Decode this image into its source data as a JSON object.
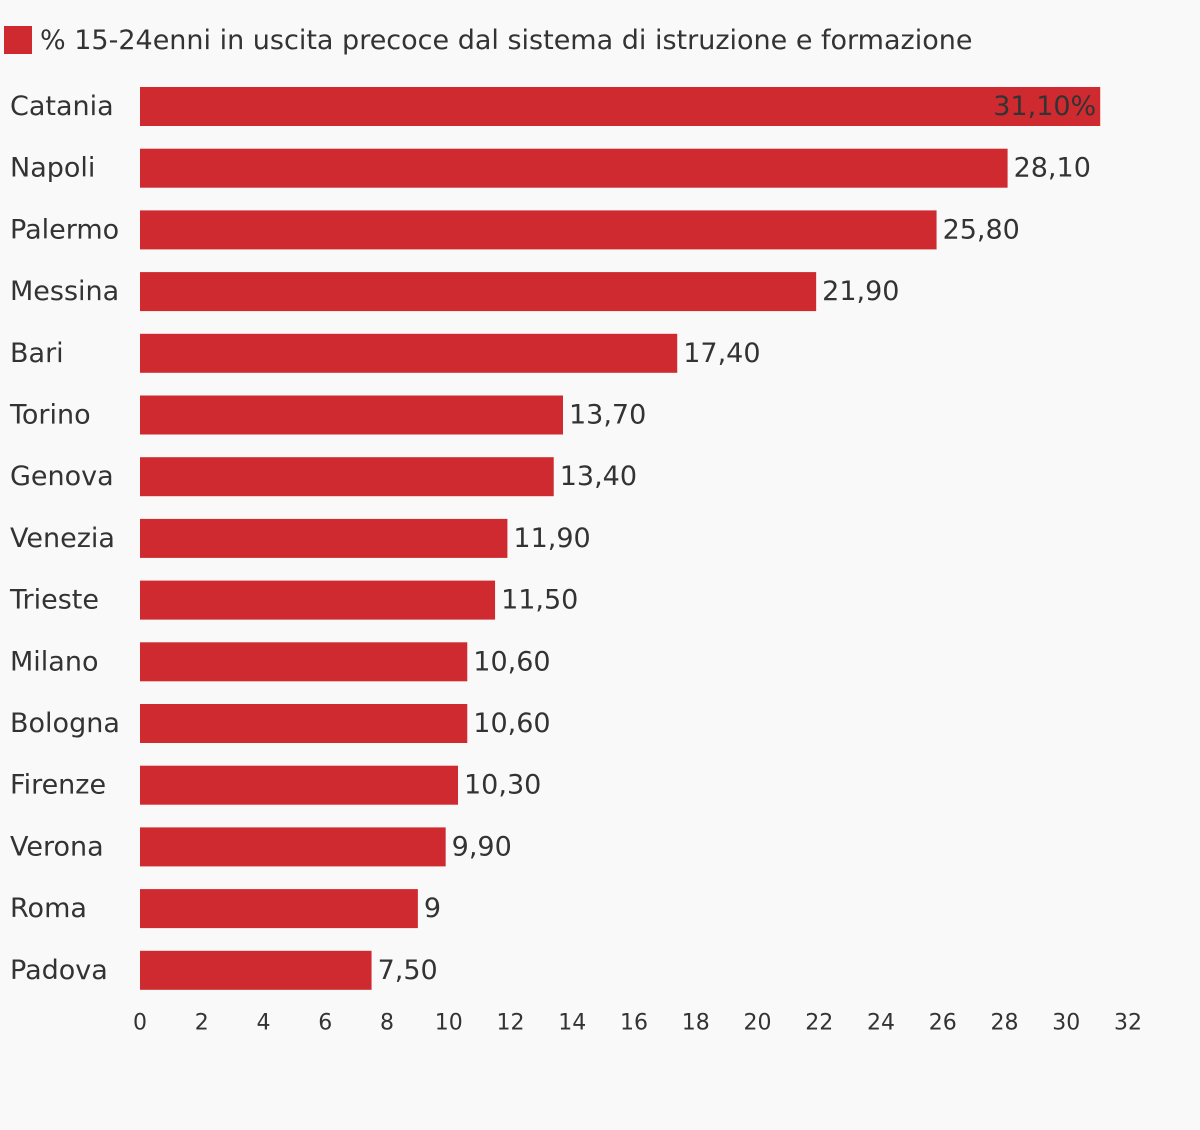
{
  "chart_data": {
    "type": "bar",
    "orientation": "horizontal",
    "legend": {
      "label": "% 15-24enni in uscita precoce dal sistema di istruzione e formazione",
      "placement": "top-left"
    },
    "categories": [
      "Catania",
      "Napoli",
      "Palermo",
      "Messina",
      "Bari",
      "Torino",
      "Genova",
      "Venezia",
      "Trieste",
      "Milano",
      "Bologna",
      "Firenze",
      "Verona",
      "Roma",
      "Padova"
    ],
    "values": [
      31.1,
      28.1,
      25.8,
      21.9,
      17.4,
      13.7,
      13.4,
      11.9,
      11.5,
      10.6,
      10.6,
      10.3,
      9.9,
      9,
      7.5
    ],
    "value_labels": [
      "31,10%",
      "28,10",
      "25,80",
      "21,90",
      "17,40",
      "13,70",
      "13,40",
      "11,90",
      "11,50",
      "10,60",
      "10,60",
      "10,30",
      "9,90",
      "9",
      "7,50"
    ],
    "xlim": [
      0,
      32
    ],
    "x_ticks": [
      "0",
      "2",
      "4",
      "6",
      "8",
      "10",
      "12",
      "14",
      "16",
      "18",
      "20",
      "22",
      "24",
      "26",
      "28",
      "30",
      "32"
    ],
    "grid": false,
    "bar_color": "#cf2a30"
  }
}
